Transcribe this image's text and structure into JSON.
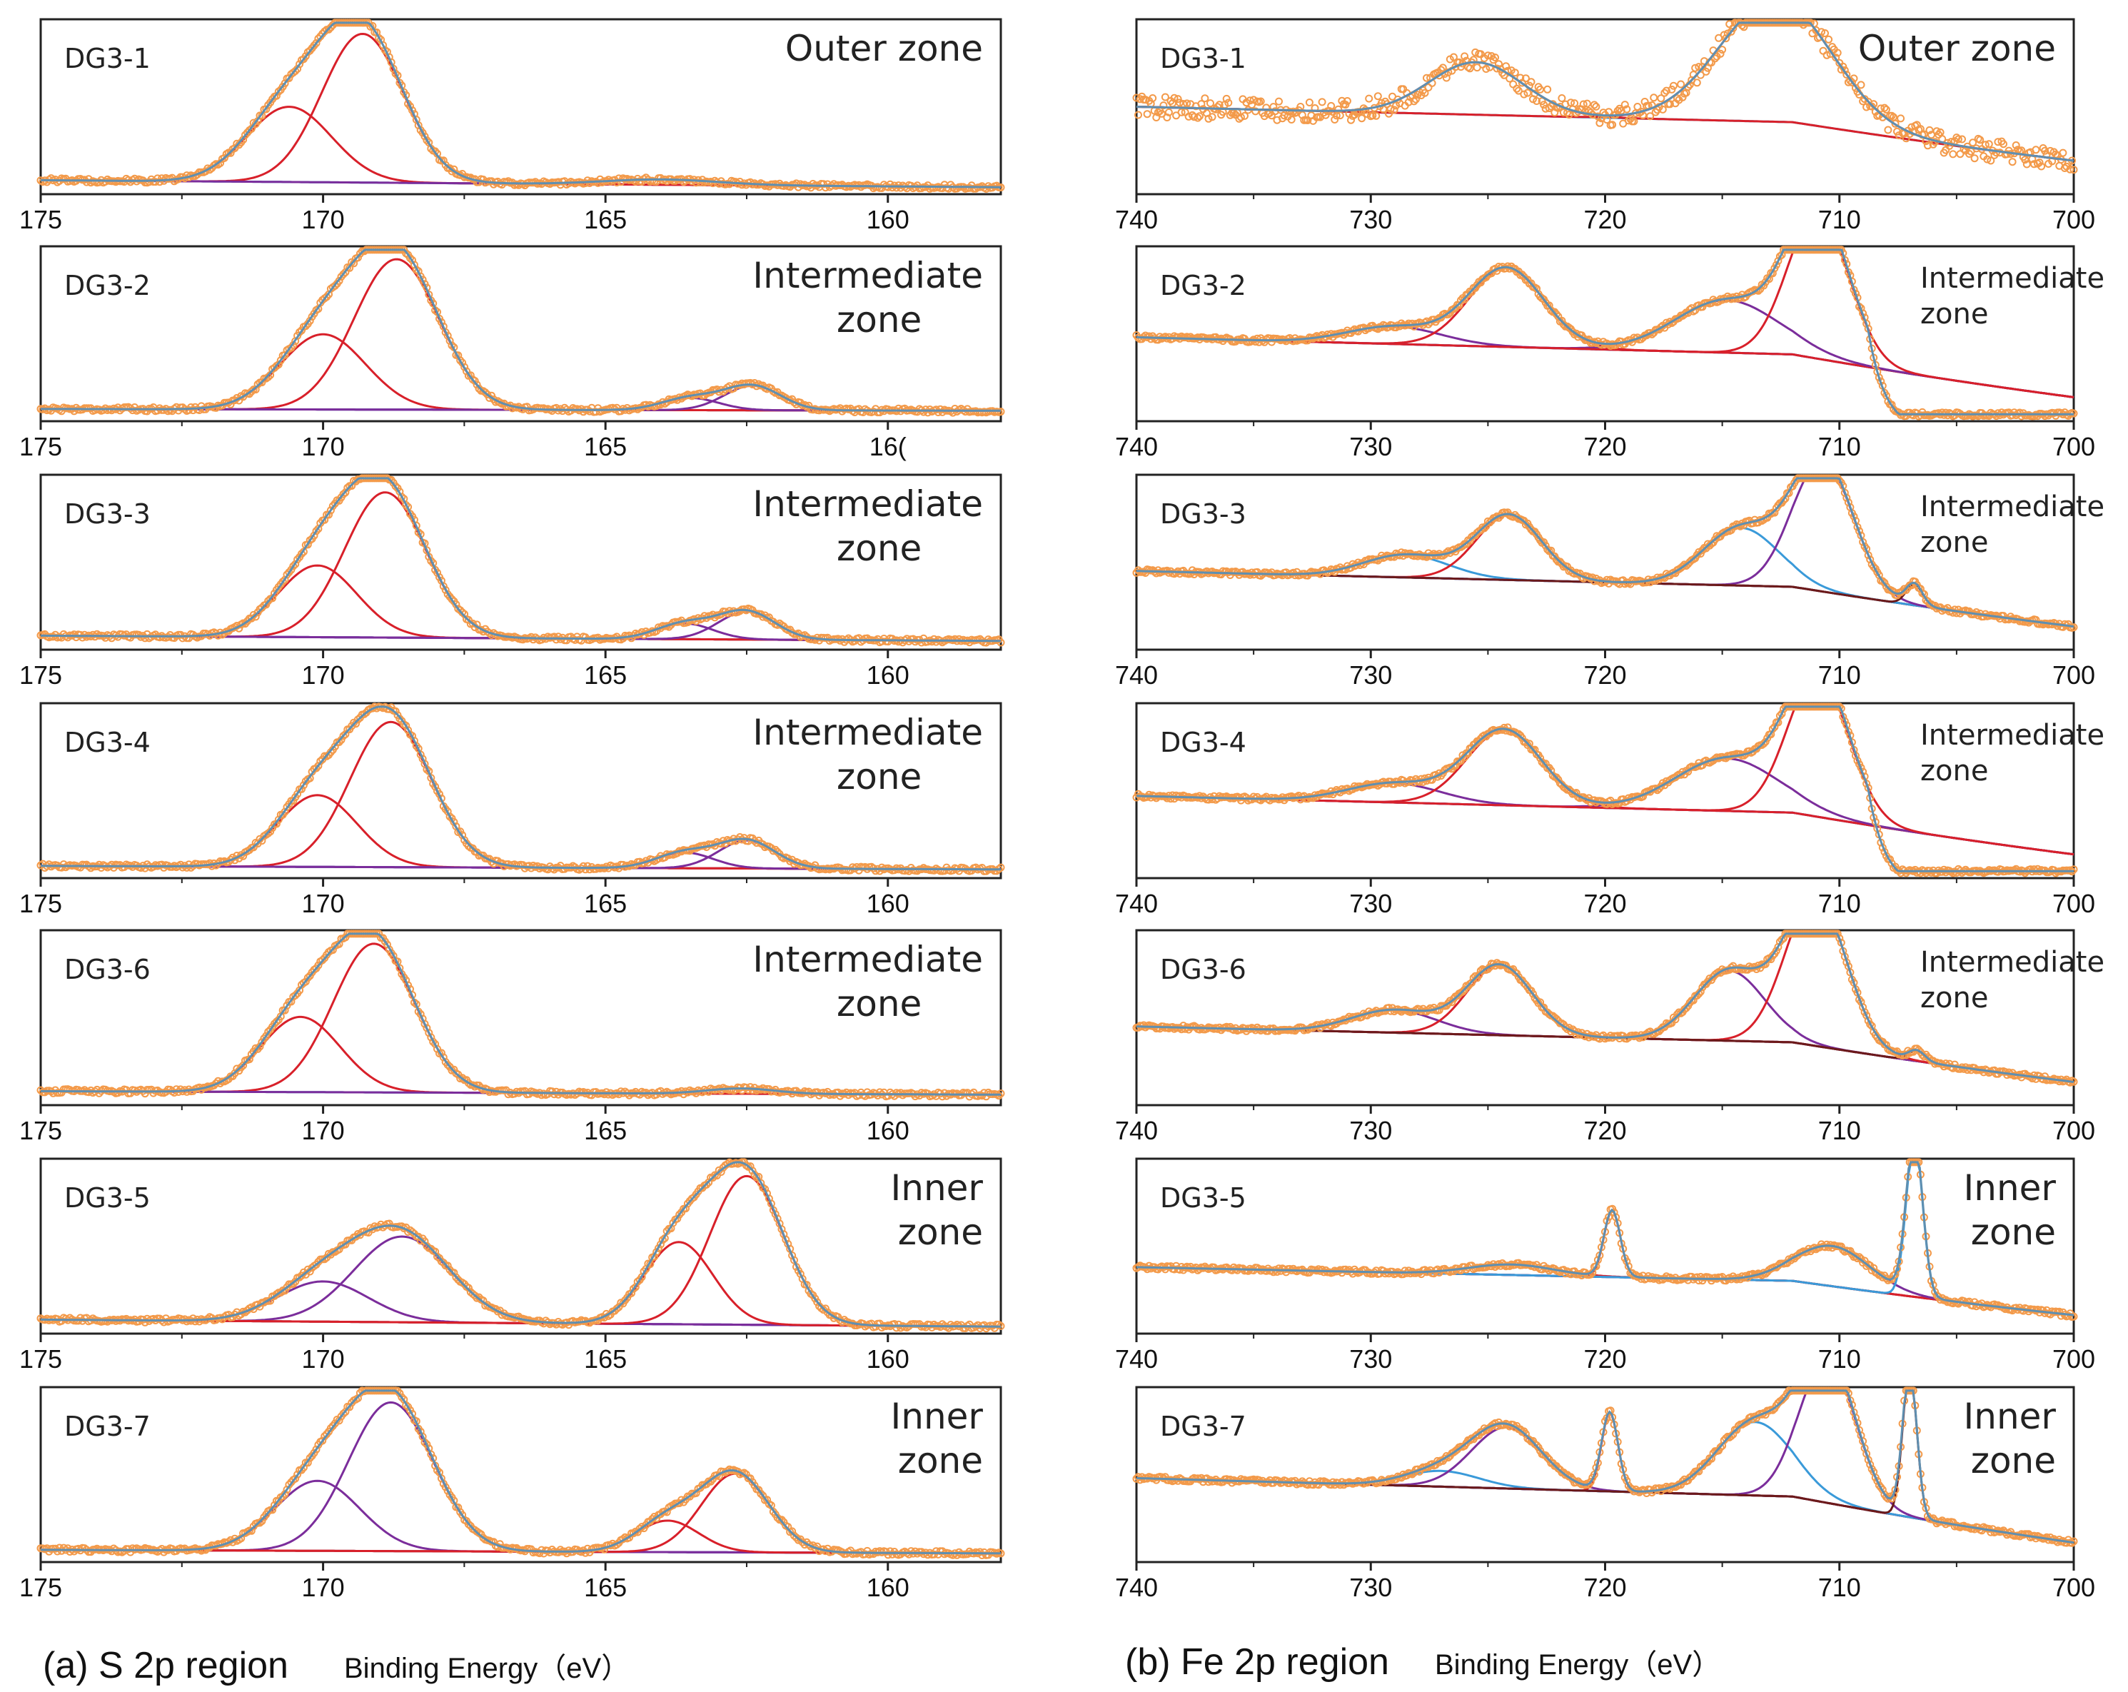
{
  "captions": {
    "left": {
      "panel": "(a) S 2p region",
      "axis": "Binding Energy（eV）"
    },
    "right": {
      "panel": "(b) Fe 2p region",
      "axis": "Binding Energy（eV）"
    }
  },
  "colors": {
    "data": "#f39a4a",
    "red": "#d8202a",
    "purple": "#7b2d9b",
    "blue": "#3a9ad9",
    "dark": "#6b1a1a",
    "frame": "#222222"
  },
  "chart_data": [
    {
      "type": "line",
      "panel": "a",
      "row": 0,
      "sample": "DG3-1",
      "zone_lines": [
        "Outer zone"
      ],
      "xlim": [
        175,
        158
      ],
      "xticks": [
        "175",
        "170",
        "165",
        "160"
      ],
      "peaks": [
        {
          "c": 170.6,
          "h": 0.43,
          "w": 0.75,
          "color": "red"
        },
        {
          "c": 169.3,
          "h": 0.85,
          "w": 0.72,
          "color": "red"
        },
        {
          "c": 164.0,
          "h": 0.03,
          "w": 1.0,
          "color": "purple"
        }
      ],
      "baseline": [
        0.08,
        0.04
      ]
    },
    {
      "type": "line",
      "panel": "a",
      "row": 1,
      "sample": "DG3-2",
      "zone_lines": [
        "Intermediate",
        "zone"
      ],
      "xlim": [
        175,
        158
      ],
      "xticks": [
        "175",
        "170",
        "165",
        "16("
      ],
      "peaks": [
        {
          "c": 170.0,
          "h": 0.43,
          "w": 0.75,
          "color": "red"
        },
        {
          "c": 168.7,
          "h": 0.86,
          "w": 0.75,
          "color": "red"
        },
        {
          "c": 163.5,
          "h": 0.07,
          "w": 0.5,
          "color": "purple"
        },
        {
          "c": 162.4,
          "h": 0.14,
          "w": 0.5,
          "color": "purple"
        }
      ],
      "baseline": [
        0.07,
        0.06
      ]
    },
    {
      "type": "line",
      "panel": "a",
      "row": 2,
      "sample": "DG3-3",
      "zone_lines": [
        "Intermediate",
        "zone"
      ],
      "xlim": [
        175,
        158
      ],
      "xticks": [
        "175",
        "170",
        "165",
        "160"
      ],
      "peaks": [
        {
          "c": 170.1,
          "h": 0.41,
          "w": 0.7,
          "color": "red"
        },
        {
          "c": 168.9,
          "h": 0.83,
          "w": 0.72,
          "color": "red"
        },
        {
          "c": 163.6,
          "h": 0.09,
          "w": 0.5,
          "color": "purple"
        },
        {
          "c": 162.5,
          "h": 0.16,
          "w": 0.5,
          "color": "purple"
        }
      ],
      "baseline": [
        0.08,
        0.05
      ]
    },
    {
      "type": "line",
      "panel": "a",
      "row": 3,
      "sample": "DG3-4",
      "zone_lines": [
        "Intermediate",
        "zone"
      ],
      "xlim": [
        175,
        158
      ],
      "xticks": [
        "175",
        "170",
        "165",
        "160"
      ],
      "peaks": [
        {
          "c": 170.1,
          "h": 0.41,
          "w": 0.7,
          "color": "red"
        },
        {
          "c": 168.8,
          "h": 0.83,
          "w": 0.72,
          "color": "red"
        },
        {
          "c": 163.6,
          "h": 0.09,
          "w": 0.5,
          "color": "purple"
        },
        {
          "c": 162.5,
          "h": 0.16,
          "w": 0.5,
          "color": "purple"
        }
      ],
      "baseline": [
        0.07,
        0.05
      ]
    },
    {
      "type": "line",
      "panel": "a",
      "row": 4,
      "sample": "DG3-6",
      "zone_lines": [
        "Intermediate",
        "zone"
      ],
      "xlim": [
        175,
        158
      ],
      "xticks": [
        "175",
        "170",
        "165",
        "160"
      ],
      "peaks": [
        {
          "c": 170.4,
          "h": 0.43,
          "w": 0.7,
          "color": "red"
        },
        {
          "c": 169.1,
          "h": 0.85,
          "w": 0.72,
          "color": "red"
        },
        {
          "c": 162.6,
          "h": 0.03,
          "w": 0.6,
          "color": "purple"
        }
      ],
      "baseline": [
        0.08,
        0.06
      ]
    },
    {
      "type": "line",
      "panel": "a",
      "row": 5,
      "sample": "DG3-5",
      "zone_lines": [
        "Inner",
        "zone"
      ],
      "xlim": [
        175,
        158
      ],
      "xticks": [
        "175",
        "170",
        "165",
        "160"
      ],
      "peaks": [
        {
          "c": 170.0,
          "h": 0.23,
          "w": 0.8,
          "color": "purple"
        },
        {
          "c": 168.6,
          "h": 0.49,
          "w": 0.85,
          "color": "purple"
        },
        {
          "c": 163.7,
          "h": 0.47,
          "w": 0.6,
          "color": "red"
        },
        {
          "c": 162.5,
          "h": 0.85,
          "w": 0.65,
          "color": "red"
        }
      ],
      "baseline": [
        0.08,
        0.04
      ]
    },
    {
      "type": "line",
      "panel": "a",
      "row": 6,
      "sample": "DG3-7",
      "zone_lines": [
        "Inner",
        "zone"
      ],
      "xlim": [
        175,
        158
      ],
      "xticks": [
        "175",
        "170",
        "165",
        "160"
      ],
      "peaks": [
        {
          "c": 170.1,
          "h": 0.4,
          "w": 0.75,
          "color": "purple"
        },
        {
          "c": 168.8,
          "h": 0.85,
          "w": 0.75,
          "color": "purple"
        },
        {
          "c": 163.9,
          "h": 0.18,
          "w": 0.55,
          "color": "red"
        },
        {
          "c": 162.7,
          "h": 0.45,
          "w": 0.6,
          "color": "red"
        }
      ],
      "baseline": [
        0.07,
        0.05
      ]
    },
    {
      "type": "line",
      "panel": "b",
      "row": 0,
      "sample": "DG3-1",
      "zone_lines": [
        "Outer zone"
      ],
      "xlim": [
        740,
        700
      ],
      "xticks": [
        "740",
        "730",
        "720",
        "710",
        "700"
      ],
      "peaks": [
        {
          "c": 725.5,
          "h": 0.3,
          "w": 2.0,
          "color": "red"
        },
        {
          "c": 712.7,
          "h": 0.7,
          "w": 2.4,
          "color": "red"
        }
      ],
      "baseline": [
        0.5,
        0.14
      ],
      "noise": 0.06
    },
    {
      "type": "line",
      "panel": "b",
      "row": 1,
      "sample": "DG3-2",
      "zone_lines": [
        "Intermediate",
        "zone"
      ],
      "xlim": [
        740,
        700
      ],
      "xticks": [
        "740",
        "730",
        "720",
        "710",
        "700"
      ],
      "peaks": [
        {
          "c": 729.0,
          "h": 0.1,
          "w": 2.0,
          "color": "purple"
        },
        {
          "c": 724.2,
          "h": 0.45,
          "w": 1.6,
          "color": "red"
        },
        {
          "c": 714.8,
          "h": 0.3,
          "w": 2.2,
          "color": "purple"
        },
        {
          "c": 710.9,
          "h": 0.83,
          "w": 1.3,
          "color": "red"
        }
      ],
      "baseline": [
        0.48,
        0.08
      ],
      "step": [
        708.8,
        0.3
      ]
    },
    {
      "type": "line",
      "panel": "b",
      "row": 2,
      "sample": "DG3-3",
      "zone_lines": [
        "Intermediate",
        "zone"
      ],
      "xlim": [
        740,
        700
      ],
      "xticks": [
        "740",
        "730",
        "720",
        "710",
        "700"
      ],
      "peaks": [
        {
          "c": 728.5,
          "h": 0.13,
          "w": 1.8,
          "color": "blue"
        },
        {
          "c": 724.1,
          "h": 0.37,
          "w": 1.4,
          "color": "red"
        },
        {
          "c": 714.2,
          "h": 0.33,
          "w": 1.6,
          "color": "blue"
        },
        {
          "c": 710.7,
          "h": 0.75,
          "w": 1.3,
          "color": "purple"
        },
        {
          "c": 706.8,
          "h": 0.12,
          "w": 0.35,
          "color": "dark"
        }
      ],
      "baseline": [
        0.45,
        0.08
      ]
    },
    {
      "type": "line",
      "panel": "b",
      "row": 3,
      "sample": "DG3-4",
      "zone_lines": [
        "Intermediate",
        "zone"
      ],
      "xlim": [
        740,
        700
      ],
      "xticks": [
        "740",
        "730",
        "720",
        "710",
        "700"
      ],
      "peaks": [
        {
          "c": 729.0,
          "h": 0.11,
          "w": 2.0,
          "color": "purple"
        },
        {
          "c": 724.3,
          "h": 0.43,
          "w": 1.6,
          "color": "red"
        },
        {
          "c": 714.8,
          "h": 0.3,
          "w": 2.2,
          "color": "purple"
        },
        {
          "c": 710.9,
          "h": 0.81,
          "w": 1.3,
          "color": "red"
        }
      ],
      "baseline": [
        0.47,
        0.08
      ],
      "step": [
        708.8,
        0.3
      ]
    },
    {
      "type": "line",
      "panel": "b",
      "row": 4,
      "sample": "DG3-6",
      "zone_lines": [
        "Intermediate",
        "zone"
      ],
      "xlim": [
        740,
        700
      ],
      "xticks": [
        "740",
        "730",
        "720",
        "710",
        "700"
      ],
      "peaks": [
        {
          "c": 729.0,
          "h": 0.13,
          "w": 1.8,
          "color": "purple"
        },
        {
          "c": 724.5,
          "h": 0.4,
          "w": 1.4,
          "color": "red"
        },
        {
          "c": 714.7,
          "h": 0.4,
          "w": 1.5,
          "color": "purple"
        },
        {
          "c": 711.0,
          "h": 0.85,
          "w": 1.3,
          "color": "red"
        },
        {
          "c": 706.7,
          "h": 0.06,
          "w": 0.35,
          "color": "dark"
        }
      ],
      "baseline": [
        0.45,
        0.08
      ]
    },
    {
      "type": "line",
      "panel": "b",
      "row": 5,
      "sample": "DG3-5",
      "zone_lines": [
        "Inner",
        "zone"
      ],
      "xlim": [
        740,
        700
      ],
      "xticks": [
        "740",
        "730",
        "720",
        "710",
        "700"
      ],
      "peaks": [
        {
          "c": 724.0,
          "h": 0.06,
          "w": 1.8,
          "color": "red"
        },
        {
          "c": 719.7,
          "h": 0.38,
          "w": 0.35,
          "color": "red"
        },
        {
          "c": 710.3,
          "h": 0.23,
          "w": 1.6,
          "color": "purple"
        },
        {
          "c": 706.8,
          "h": 0.9,
          "w": 0.35,
          "color": "blue"
        }
      ],
      "baseline": [
        0.38,
        0.06
      ]
    },
    {
      "type": "line",
      "panel": "b",
      "row": 6,
      "sample": "DG3-7",
      "zone_lines": [
        "Inner",
        "zone"
      ],
      "xlim": [
        740,
        700
      ],
      "xticks": [
        "740",
        "730",
        "720",
        "710",
        "700"
      ],
      "peaks": [
        {
          "c": 727.0,
          "h": 0.09,
          "w": 1.6,
          "color": "blue"
        },
        {
          "c": 724.2,
          "h": 0.35,
          "w": 1.5,
          "color": "purple"
        },
        {
          "c": 719.8,
          "h": 0.45,
          "w": 0.35,
          "color": "red"
        },
        {
          "c": 713.6,
          "h": 0.42,
          "w": 1.6,
          "color": "blue"
        },
        {
          "c": 710.5,
          "h": 0.82,
          "w": 1.2,
          "color": "purple"
        },
        {
          "c": 707.0,
          "h": 0.85,
          "w": 0.3,
          "color": "dark"
        }
      ],
      "baseline": [
        0.48,
        0.05
      ]
    }
  ]
}
